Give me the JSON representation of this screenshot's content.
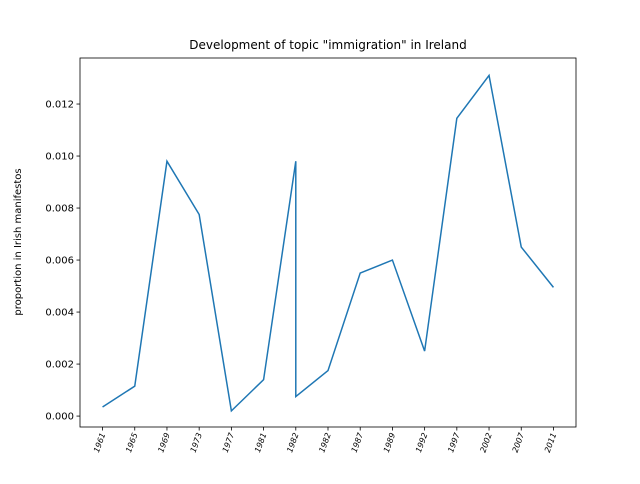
{
  "chart_data": {
    "type": "line",
    "title": "Development of topic \"immigration\" in Ireland",
    "ylabel": "proportion in Irish manifestos",
    "categories": [
      "1961",
      "1965",
      "1969",
      "1973",
      "1977",
      "1981",
      null,
      "1982",
      "1982",
      "1987",
      "1989",
      "1992",
      "1997",
      "2002",
      "2007",
      "2011"
    ],
    "series": [
      {
        "name": "immigration",
        "color": "#1f77b4",
        "values": [
          0.00035,
          0.00115,
          0.0098,
          0.00775,
          0.0002,
          0.0014,
          0.0098,
          0.00075,
          0.00175,
          0.0055,
          0.006,
          0.0025,
          0.01145,
          0.0131,
          0.0065,
          0.00495
        ]
      }
    ],
    "ylim": [
      -0.00042,
      0.01377
    ],
    "yticks": [
      {
        "value": 0,
        "label": "0.000"
      },
      {
        "value": 0.002,
        "label": "0.002"
      },
      {
        "value": 0.004,
        "label": "0.004"
      },
      {
        "value": 0.006,
        "label": "0.006"
      },
      {
        "value": 0.008,
        "label": "0.008"
      },
      {
        "value": 0.01,
        "label": "0.010"
      },
      {
        "value": 0.012,
        "label": "0.012"
      }
    ]
  }
}
